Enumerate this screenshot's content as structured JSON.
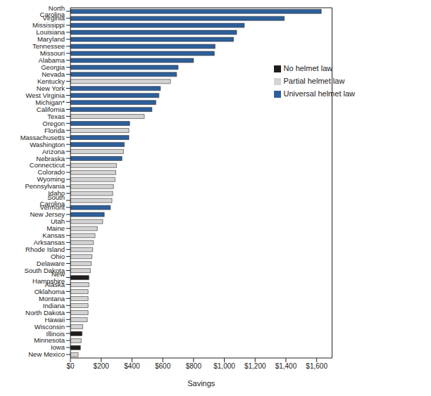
{
  "chart_data": {
    "type": "bar",
    "orientation": "horizontal",
    "stacked": true,
    "grid": false,
    "legend": "upper right",
    "x_label": "Savings",
    "categories": [
      "North Carolina",
      "Virginia",
      "Mississippi",
      "Louisiana",
      "Maryland",
      "Tennessee",
      "Missouri",
      "Alabama",
      "Georgia",
      "Nevada",
      "Kentucky",
      "New York",
      "West Virginia",
      "Michigan*",
      "California",
      "Texas",
      "Oregon",
      "Florida",
      "Massachusetts",
      "Washington",
      "Arizona",
      "Nebraska",
      "Connecticut",
      "Colorado",
      "Wyoming",
      "Pennsylvania",
      "Idaho",
      "South Carolina",
      "Vermont",
      "New Jersey",
      "Utah",
      "Maine",
      "Kansas",
      "Arksansas",
      "Rhode Island",
      "Ohio",
      "Delaware",
      "South Dakota",
      "New Hampshire",
      "Alaska",
      "Oklahoma",
      "Montana",
      "Indiana",
      "North Dakota",
      "Hawaii",
      "Wisconsin",
      "Illinois",
      "Minnesota",
      "Iowa",
      "New Mexico"
    ],
    "series": [
      {
        "name": "Universal helmet law",
        "color": "#2d5f9a",
        "values": [
          1630,
          1390,
          1130,
          1080,
          1060,
          940,
          935,
          800,
          700,
          690,
          null,
          585,
          575,
          555,
          530,
          null,
          385,
          null,
          380,
          350,
          null,
          335,
          null,
          null,
          null,
          null,
          null,
          null,
          260,
          220,
          null,
          null,
          null,
          null,
          null,
          null,
          null,
          null,
          null,
          null,
          null,
          null,
          null,
          null,
          null,
          null,
          null,
          null,
          null,
          null
        ]
      },
      {
        "name": "Partial helmet law",
        "color": "#d3d3d3",
        "values": [
          null,
          null,
          null,
          null,
          null,
          null,
          null,
          null,
          null,
          null,
          650,
          null,
          null,
          null,
          null,
          480,
          null,
          380,
          null,
          null,
          345,
          null,
          300,
          295,
          290,
          280,
          275,
          270,
          null,
          null,
          210,
          175,
          160,
          150,
          145,
          140,
          135,
          130,
          null,
          120,
          115,
          115,
          115,
          115,
          110,
          80,
          null,
          70,
          null,
          50
        ]
      },
      {
        "name": "No helmet law",
        "color": "#1e1e1e",
        "values": [
          null,
          null,
          null,
          null,
          null,
          null,
          null,
          null,
          null,
          null,
          null,
          null,
          null,
          null,
          null,
          null,
          null,
          null,
          null,
          null,
          null,
          null,
          null,
          null,
          null,
          null,
          null,
          null,
          null,
          null,
          null,
          null,
          null,
          null,
          null,
          null,
          null,
          null,
          120,
          null,
          null,
          null,
          null,
          null,
          null,
          null,
          75,
          null,
          65,
          null
        ]
      }
    ],
    "xlim": [
      0,
      1700
    ],
    "xticks": [
      {
        "value": 0,
        "label": "$0"
      },
      {
        "value": 200,
        "label": "$200"
      },
      {
        "value": 400,
        "label": "$400"
      },
      {
        "value": 600,
        "label": "$600"
      },
      {
        "value": 800,
        "label": "$800"
      },
      {
        "value": 1000,
        "label": "$1,000"
      },
      {
        "value": 1200,
        "label": "$1,200"
      },
      {
        "value": 1400,
        "label": "$1,400"
      },
      {
        "value": 1600,
        "label": "$1,600"
      }
    ]
  }
}
